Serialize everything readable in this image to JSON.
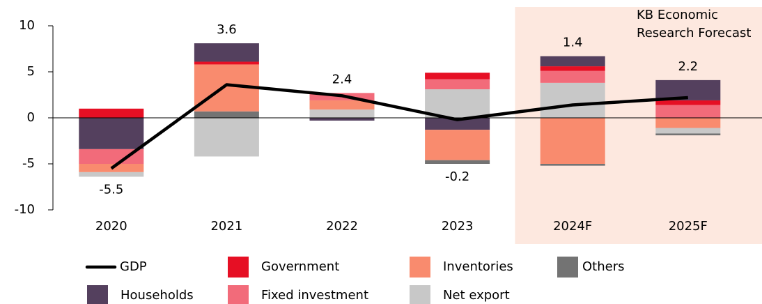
{
  "chart_data": {
    "type": "bar",
    "annotation": [
      "KB Economic",
      "Research Forecast"
    ],
    "categories": [
      "2020",
      "2021",
      "2022",
      "2023",
      "2024F",
      "2025F"
    ],
    "ylim": [
      -10,
      10
    ],
    "yticks": [
      -10,
      -5,
      0,
      5,
      10
    ],
    "series": [
      {
        "name": "Households",
        "color": "#54405e",
        "values": [
          -3.4,
          2.0,
          -0.3,
          -1.3,
          1.1,
          2.2
        ]
      },
      {
        "name": "Government",
        "color": "#e60f24",
        "values": [
          1.0,
          0.3,
          0,
          0.7,
          0.5,
          0.5
        ]
      },
      {
        "name": "Fixed investment",
        "color": "#f26b7a",
        "values": [
          -1.6,
          0,
          0.8,
          1.1,
          1.3,
          1.4
        ]
      },
      {
        "name": "Inventories",
        "color": "#f98b6e",
        "values": [
          -0.9,
          5.1,
          1.0,
          -3.3,
          -5.0,
          -1.1
        ]
      },
      {
        "name": "Net export",
        "color": "#c8c8c8",
        "values": [
          -0.5,
          -4.2,
          0.9,
          3.1,
          3.8,
          -0.6
        ]
      },
      {
        "name": "Others",
        "color": "#737373",
        "values": [
          0,
          0.7,
          0,
          -0.4,
          -0.2,
          -0.2
        ]
      }
    ],
    "line": {
      "name": "GDP",
      "color": "#000000",
      "values": [
        -5.5,
        3.6,
        2.4,
        -0.2,
        1.4,
        2.2
      ]
    }
  }
}
